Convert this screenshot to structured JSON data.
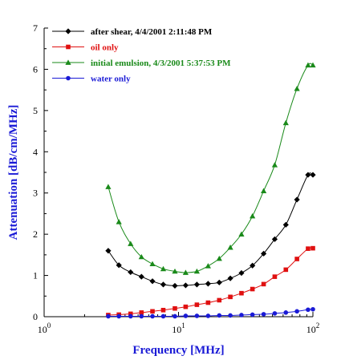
{
  "chart_data": {
    "type": "line",
    "title": "",
    "xlabel": "Frequency [MHz]",
    "ylabel": "Attenuation [dB/cm/MHz]",
    "x_scale": "log",
    "xlim": [
      1,
      100
    ],
    "ylim": [
      0,
      7
    ],
    "x_ticks": [
      1,
      10,
      100
    ],
    "x_tick_labels": [
      {
        "base": "10",
        "exp": "0"
      },
      {
        "base": "10",
        "exp": "1"
      },
      {
        "base": "10",
        "exp": "2"
      }
    ],
    "y_ticks": [
      "0",
      "1",
      "2",
      "3",
      "4",
      "5",
      "6",
      "7"
    ],
    "grid": false,
    "legend_position": "top-left",
    "x": [
      3,
      3.6,
      4.4,
      5.3,
      6.4,
      7.7,
      9.4,
      11.3,
      13.7,
      16.6,
      20.1,
      24.3,
      29.4,
      35.5,
      43,
      52,
      62.9,
      76.1,
      92,
      100
    ],
    "series": [
      {
        "name": "after shear, 4/4/2001 2:11:48 PM",
        "color": "#000000",
        "marker": "diamond",
        "values": [
          1.6,
          1.25,
          1.08,
          0.97,
          0.86,
          0.78,
          0.75,
          0.76,
          0.78,
          0.8,
          0.83,
          0.93,
          1.06,
          1.24,
          1.53,
          1.88,
          2.23,
          2.84,
          3.44,
          3.44
        ]
      },
      {
        "name": "oil only",
        "color": "#e01010",
        "marker": "square",
        "values": [
          0.04,
          0.05,
          0.07,
          0.1,
          0.13,
          0.16,
          0.2,
          0.24,
          0.29,
          0.34,
          0.4,
          0.48,
          0.57,
          0.67,
          0.79,
          0.97,
          1.14,
          1.4,
          1.65,
          1.66
        ]
      },
      {
        "name": "initial emulsion, 4/3/2001 5:37:53 PM",
        "color": "#1a8a1a",
        "marker": "triangle",
        "values": [
          3.15,
          2.3,
          1.77,
          1.45,
          1.28,
          1.16,
          1.1,
          1.07,
          1.1,
          1.23,
          1.41,
          1.68,
          2.0,
          2.44,
          3.05,
          3.68,
          4.7,
          5.53,
          6.1,
          6.1
        ]
      },
      {
        "name": "water only",
        "color": "#1a1ad6",
        "marker": "circle",
        "values": [
          0.01,
          0.01,
          0.01,
          0.01,
          0.01,
          0.01,
          0.01,
          0.02,
          0.02,
          0.02,
          0.03,
          0.03,
          0.04,
          0.05,
          0.06,
          0.08,
          0.1,
          0.13,
          0.17,
          0.18
        ]
      }
    ]
  }
}
